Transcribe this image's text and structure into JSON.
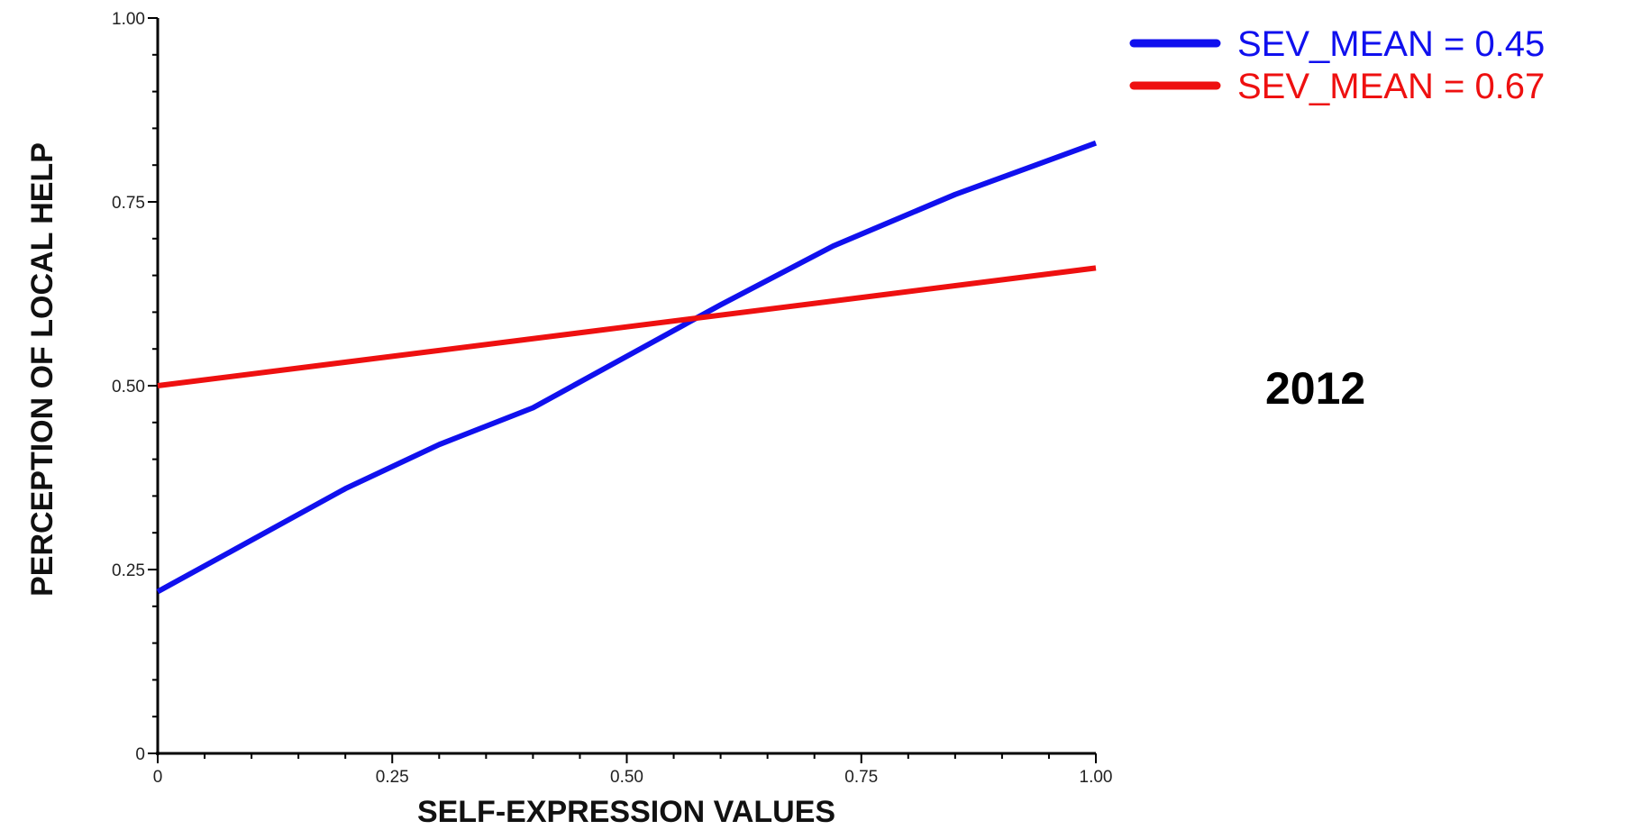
{
  "chart_data": {
    "type": "line",
    "title": "",
    "xlabel": "SELF-EXPRESSION VALUES",
    "ylabel": "PERCEPTION OF LOCAL HELP",
    "xlim": [
      0,
      1
    ],
    "ylim": [
      0,
      1
    ],
    "x_ticks": [
      0,
      0.25,
      0.5,
      0.75,
      1.0
    ],
    "x_tick_labels": [
      "0",
      "0.25",
      "0.50",
      "0.75",
      "1.00"
    ],
    "y_ticks": [
      0,
      0.25,
      0.5,
      0.75,
      1.0
    ],
    "y_tick_labels": [
      "0",
      "0.25",
      "0.50",
      "0.75",
      "1.00"
    ],
    "grid": false,
    "legend_position": "top-right",
    "annotation": "2012",
    "series": [
      {
        "name": "SEV_MEAN = 0.45",
        "color": "#1010ee",
        "x": [
          0,
          0.1,
          0.2,
          0.3,
          0.4,
          0.5,
          0.6,
          0.72,
          0.85,
          1.0
        ],
        "y": [
          0.22,
          0.29,
          0.36,
          0.42,
          0.47,
          0.54,
          0.61,
          0.69,
          0.76,
          0.83
        ]
      },
      {
        "name": "SEV_MEAN = 0.67",
        "color": "#ee1010",
        "x": [
          0,
          0.25,
          0.5,
          0.75,
          1.0
        ],
        "y": [
          0.5,
          0.54,
          0.58,
          0.62,
          0.66
        ]
      }
    ]
  }
}
